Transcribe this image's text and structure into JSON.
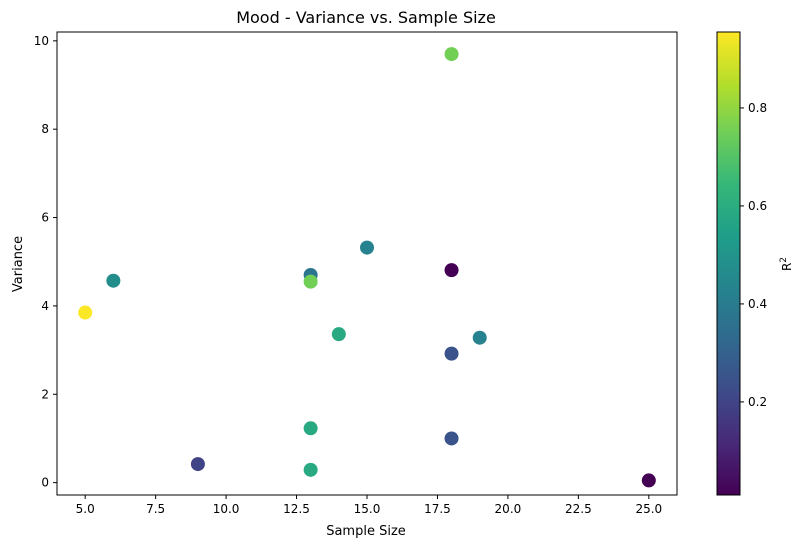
{
  "chart_data": {
    "type": "scatter",
    "title": "Mood - Variance vs. Sample Size",
    "xlabel": "Sample Size",
    "ylabel": "Variance",
    "xlim": [
      4.0,
      26.0
    ],
    "ylim": [
      -0.28,
      10.2
    ],
    "x_ticks": [
      5.0,
      7.5,
      10.0,
      12.5,
      15.0,
      17.5,
      20.0,
      22.5,
      25.0
    ],
    "x_tick_labels": [
      "5.0",
      "7.5",
      "10.0",
      "12.5",
      "15.0",
      "17.5",
      "20.0",
      "22.5",
      "25.0"
    ],
    "y_ticks": [
      0,
      2,
      4,
      6,
      8,
      10
    ],
    "y_tick_labels": [
      "0",
      "2",
      "4",
      "6",
      "8",
      "10"
    ],
    "grid": false,
    "colorbar": {
      "label": "R²",
      "colormap": "viridis",
      "range": [
        0.01,
        0.955
      ],
      "ticks": [
        0.2,
        0.4,
        0.6,
        0.8
      ],
      "tick_labels": [
        "0.2",
        "0.4",
        "0.6",
        "0.8"
      ]
    },
    "points": [
      {
        "x": 5,
        "y": 3.85,
        "r2": 0.95
      },
      {
        "x": 6,
        "y": 4.57,
        "r2": 0.47
      },
      {
        "x": 9,
        "y": 0.42,
        "r2": 0.2
      },
      {
        "x": 13,
        "y": 4.7,
        "r2": 0.38
      },
      {
        "x": 13,
        "y": 4.55,
        "r2": 0.75
      },
      {
        "x": 13,
        "y": 1.23,
        "r2": 0.58
      },
      {
        "x": 13,
        "y": 0.29,
        "r2": 0.58
      },
      {
        "x": 14,
        "y": 3.36,
        "r2": 0.58
      },
      {
        "x": 15,
        "y": 5.32,
        "r2": 0.43
      },
      {
        "x": 18,
        "y": 9.7,
        "r2": 0.75
      },
      {
        "x": 18,
        "y": 4.81,
        "r2": 0.01
      },
      {
        "x": 18,
        "y": 2.92,
        "r2": 0.25
      },
      {
        "x": 18,
        "y": 1.0,
        "r2": 0.25
      },
      {
        "x": 19,
        "y": 3.28,
        "r2": 0.43
      },
      {
        "x": 25,
        "y": 0.05,
        "r2": 0.01
      }
    ]
  }
}
